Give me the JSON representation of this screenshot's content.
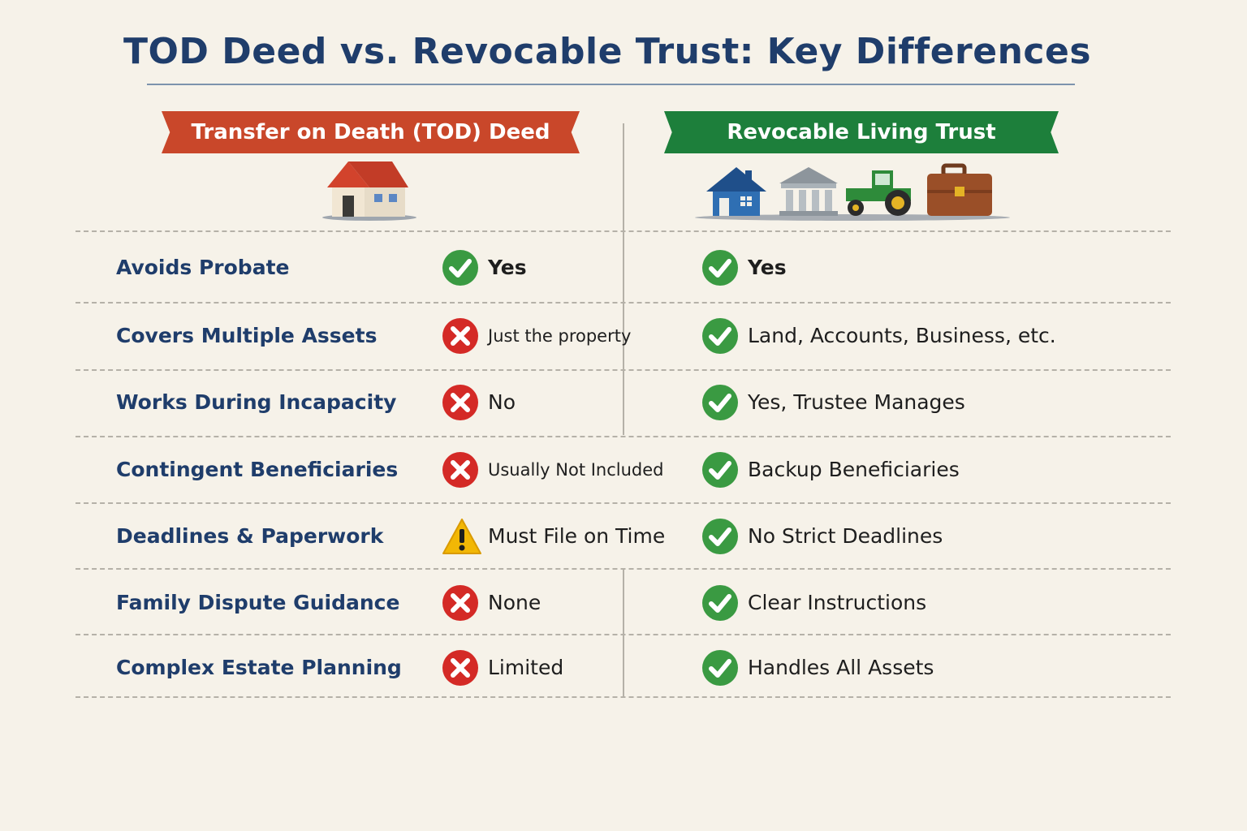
{
  "title": "TOD Deed vs. Revocable Trust: Key Differences",
  "columns": {
    "left": {
      "heading": "Transfer on Death (TOD) Deed",
      "color": "#c9472a",
      "icons": [
        "house-icon"
      ]
    },
    "right": {
      "heading": "Revocable Living Trust",
      "color": "#1d7f3b",
      "icons": [
        "house-icon",
        "bank-icon",
        "tractor-icon",
        "briefcase-icon"
      ]
    }
  },
  "rows": [
    {
      "label": "Avoids Probate",
      "left": {
        "status": "check",
        "text": "Yes"
      },
      "right": {
        "status": "check",
        "text": "Yes"
      }
    },
    {
      "label": "Covers Multiple Assets",
      "left": {
        "status": "cross",
        "text": "Just the property"
      },
      "right": {
        "status": "check",
        "text": "Land, Accounts, Business, etc."
      }
    },
    {
      "label": "Works During Incapacity",
      "left": {
        "status": "cross",
        "text": "No"
      },
      "right": {
        "status": "check",
        "text": "Yes, Trustee Manages"
      }
    },
    {
      "label": "Contingent Beneficiaries",
      "left": {
        "status": "cross",
        "text": "Usually Not Included"
      },
      "right": {
        "status": "check",
        "text": "Backup Beneficiaries"
      }
    },
    {
      "label": "Deadlines & Paperwork",
      "left": {
        "status": "warning",
        "text": "Must File on Time"
      },
      "right": {
        "status": "check",
        "text": "No Strict Deadlines"
      }
    },
    {
      "label": "Family Dispute Guidance",
      "left": {
        "status": "cross",
        "text": "None"
      },
      "right": {
        "status": "check",
        "text": "Clear Instructions"
      }
    },
    {
      "label": "Complex Estate Planning",
      "left": {
        "status": "cross",
        "text": "Limited"
      },
      "right": {
        "status": "check",
        "text": "Handles All Assets"
      }
    }
  ],
  "status_colors": {
    "check": "#3a9a42",
    "cross": "#d42a26",
    "warning": "#f2b705"
  }
}
